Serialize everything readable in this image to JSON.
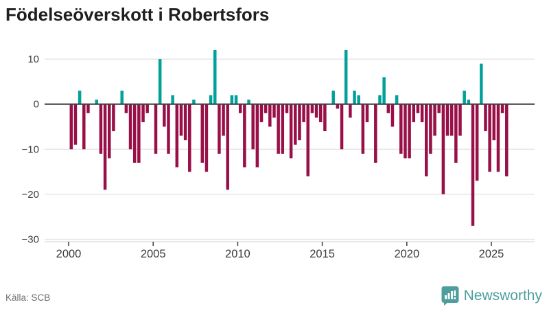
{
  "page": {
    "title": "Födelseöverskott i Robertsfors",
    "source": "Källa: SCB"
  },
  "logo": {
    "text": "Newsworthy",
    "icon": "speech-bubble-bar-chart-icon"
  },
  "colors": {
    "positive_bar": "#00A19A",
    "negative_bar": "#991048",
    "zero_line": "#404040",
    "gridline": "#e3e3e3",
    "axis_line": "#d9d9d9",
    "tick_mark": "#4a4a4a",
    "axis_text": "#3c3c3c",
    "title_text": "#1f1f1f",
    "source_text": "#707070",
    "logo_teal": "#4d9e9c"
  },
  "chart_data": {
    "type": "bar",
    "title": "Födelseöverskott i Robertsfors",
    "xlabel": "",
    "ylabel": "",
    "frequency": "quarterly",
    "start_year": 2000,
    "x_start": "2000 Q1",
    "x_end": "2025 Q4",
    "series": [
      {
        "name": "Födelseöverskott",
        "values": [
          -10,
          -9,
          3,
          -10,
          -2,
          0,
          1,
          -11,
          -19,
          -12,
          -6,
          0,
          3,
          -2,
          -10,
          -13,
          -13,
          -4,
          -2,
          0,
          -11,
          10,
          -5,
          -11,
          2,
          -14,
          -7,
          -8,
          -15,
          1,
          0,
          -13,
          -15,
          2,
          12,
          -11,
          -7,
          -19,
          2,
          2,
          -2,
          -14,
          1,
          -10,
          -14,
          -4,
          -2,
          -5,
          -3,
          -11,
          -11,
          -2,
          -12,
          -9,
          -8,
          -4,
          -16,
          -2,
          -3,
          -4,
          -6,
          0,
          3,
          -1,
          -10,
          12,
          -3,
          3,
          2,
          -11,
          -4,
          0,
          -13,
          2,
          6,
          -2,
          -5,
          2,
          -11,
          -12,
          -12,
          -4,
          -2,
          -4,
          -16,
          -11,
          -7,
          -2,
          -20,
          -7,
          -7,
          -13,
          -7,
          3,
          1,
          -27,
          -17,
          9,
          -6,
          -15,
          -8,
          -15,
          -2,
          -16
        ]
      }
    ],
    "x_ticks": [
      2000,
      2005,
      2010,
      2015,
      2020,
      2025
    ],
    "y_ticks": [
      10,
      0,
      -10,
      -20,
      -30
    ],
    "ylim": [
      -30,
      12
    ],
    "grid": "horizontal",
    "legend": "none"
  }
}
